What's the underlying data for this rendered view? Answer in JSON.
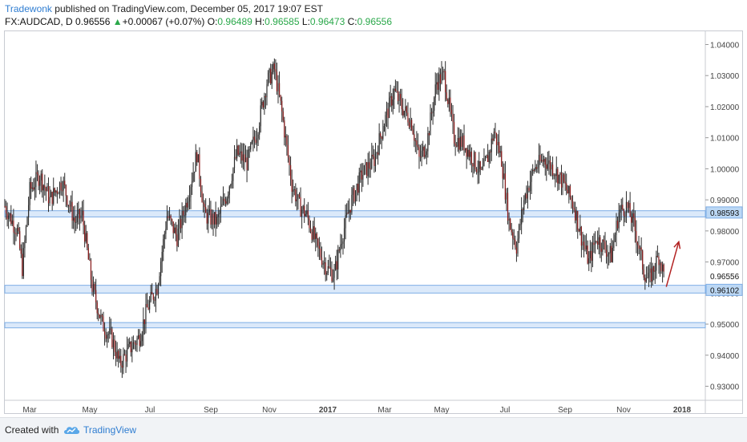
{
  "header": {
    "author": "Tradewonk",
    "published_text": "published on TradingView.com, December 05, 2017 19:07 EST"
  },
  "symbol": {
    "name": "FX:AUDCAD, D",
    "last": "0.96556",
    "change_icon": "triangle-up-icon",
    "change": "+0.00067 (+0.07%)",
    "open_label": "O:",
    "open": "0.96489",
    "high_label": "H:",
    "high": "0.96585",
    "low_label": "L:",
    "low": "0.96473",
    "close_label": "C:",
    "close": "0.96556"
  },
  "footer": {
    "created_with": "Created with",
    "brand": "TradingView",
    "logo_icon": "tradingview-cloud-icon"
  },
  "colors": {
    "bar": "#2b2b2b",
    "bar_accent": "#8b1a1a",
    "zone_fill": "#dbe9fa",
    "zone_line": "#7eaee6",
    "price_tag": "#bcd8f5",
    "arrow": "#b22222",
    "axis_text": "#444444"
  },
  "chart_data": {
    "type": "candlestick",
    "y_axis": {
      "range": [
        0.926,
        1.044
      ],
      "ticks": [
        "0.93000",
        "0.94000",
        "0.95000",
        "0.96000",
        "0.97000",
        "0.98000",
        "0.99000",
        "1.00000",
        "1.01000",
        "1.02000",
        "1.03000",
        "1.04000"
      ],
      "position": "right"
    },
    "x_axis": {
      "labels": [
        {
          "text": "Mar",
          "bold": false
        },
        {
          "text": "May",
          "bold": false
        },
        {
          "text": "Jul",
          "bold": false
        },
        {
          "text": "Sep",
          "bold": false
        },
        {
          "text": "Nov",
          "bold": false
        },
        {
          "text": "2017",
          "bold": true
        },
        {
          "text": "Mar",
          "bold": false
        },
        {
          "text": "May",
          "bold": false
        },
        {
          "text": "Jul",
          "bold": false
        },
        {
          "text": "Sep",
          "bold": false
        },
        {
          "text": "Nov",
          "bold": false
        },
        {
          "text": "2018",
          "bold": true
        }
      ]
    },
    "price_labels": [
      {
        "text": "0.98593",
        "value": 0.98593,
        "highlight": true
      },
      {
        "text": "0.96556",
        "value": 0.96556,
        "highlight": false
      },
      {
        "text": "0.96102",
        "value": 0.96102,
        "highlight": true
      }
    ],
    "zones": [
      {
        "top": 0.9865,
        "bottom": 0.9845
      },
      {
        "top": 0.9625,
        "bottom": 0.96
      },
      {
        "top": 0.9505,
        "bottom": 0.9488
      }
    ],
    "path": [
      {
        "t": 0,
        "v": 0.988
      },
      {
        "t": 6,
        "v": 0.983
      },
      {
        "t": 10,
        "v": 0.98
      },
      {
        "t": 14,
        "v": 0.968
      },
      {
        "t": 20,
        "v": 0.993
      },
      {
        "t": 28,
        "v": 0.998
      },
      {
        "t": 36,
        "v": 0.99
      },
      {
        "t": 46,
        "v": 0.996
      },
      {
        "t": 56,
        "v": 0.983
      },
      {
        "t": 62,
        "v": 0.985
      },
      {
        "t": 70,
        "v": 0.962
      },
      {
        "t": 78,
        "v": 0.95
      },
      {
        "t": 86,
        "v": 0.945
      },
      {
        "t": 92,
        "v": 0.937
      },
      {
        "t": 100,
        "v": 0.942
      },
      {
        "t": 108,
        "v": 0.946
      },
      {
        "t": 114,
        "v": 0.955
      },
      {
        "t": 122,
        "v": 0.962
      },
      {
        "t": 130,
        "v": 0.985
      },
      {
        "t": 138,
        "v": 0.978
      },
      {
        "t": 146,
        "v": 0.99
      },
      {
        "t": 154,
        "v": 1.005
      },
      {
        "t": 160,
        "v": 0.985
      },
      {
        "t": 170,
        "v": 0.983
      },
      {
        "t": 178,
        "v": 0.992
      },
      {
        "t": 186,
        "v": 1.005
      },
      {
        "t": 194,
        "v": 1.002
      },
      {
        "t": 202,
        "v": 1.012
      },
      {
        "t": 210,
        "v": 1.028
      },
      {
        "t": 216,
        "v": 1.032
      },
      {
        "t": 222,
        "v": 1.018
      },
      {
        "t": 230,
        "v": 0.995
      },
      {
        "t": 236,
        "v": 0.988
      },
      {
        "t": 242,
        "v": 0.985
      },
      {
        "t": 250,
        "v": 0.975
      },
      {
        "t": 258,
        "v": 0.968
      },
      {
        "t": 264,
        "v": 0.966
      },
      {
        "t": 270,
        "v": 0.978
      },
      {
        "t": 278,
        "v": 0.99
      },
      {
        "t": 286,
        "v": 0.998
      },
      {
        "t": 296,
        "v": 1.003
      },
      {
        "t": 304,
        "v": 1.015
      },
      {
        "t": 312,
        "v": 1.025
      },
      {
        "t": 318,
        "v": 1.02
      },
      {
        "t": 326,
        "v": 1.015
      },
      {
        "t": 332,
        "v": 1.003
      },
      {
        "t": 338,
        "v": 1.008
      },
      {
        "t": 346,
        "v": 1.028
      },
      {
        "t": 352,
        "v": 1.03
      },
      {
        "t": 360,
        "v": 1.01
      },
      {
        "t": 368,
        "v": 1.008
      },
      {
        "t": 374,
        "v": 1.004
      },
      {
        "t": 382,
        "v": 0.998
      },
      {
        "t": 388,
        "v": 1.005
      },
      {
        "t": 392,
        "v": 1.012
      },
      {
        "t": 398,
        "v": 1.003
      },
      {
        "t": 404,
        "v": 0.983
      },
      {
        "t": 410,
        "v": 0.975
      },
      {
        "t": 416,
        "v": 0.99
      },
      {
        "t": 424,
        "v": 1.0
      },
      {
        "t": 432,
        "v": 1.003
      },
      {
        "t": 440,
        "v": 1.0
      },
      {
        "t": 448,
        "v": 0.995
      },
      {
        "t": 456,
        "v": 0.988
      },
      {
        "t": 462,
        "v": 0.978
      },
      {
        "t": 468,
        "v": 0.97
      },
      {
        "t": 474,
        "v": 0.978
      },
      {
        "t": 480,
        "v": 0.975
      },
      {
        "t": 486,
        "v": 0.972
      },
      {
        "t": 492,
        "v": 0.986
      },
      {
        "t": 498,
        "v": 0.988
      },
      {
        "t": 504,
        "v": 0.982
      },
      {
        "t": 508,
        "v": 0.975
      },
      {
        "t": 512,
        "v": 0.967
      },
      {
        "t": 516,
        "v": 0.964
      },
      {
        "t": 520,
        "v": 0.968
      },
      {
        "t": 524,
        "v": 0.972
      },
      {
        "t": 528,
        "v": 0.966
      }
    ],
    "projection_arrow": {
      "from": {
        "t": 530,
        "v": 0.962
      },
      "to": {
        "t": 540,
        "v": 0.9765
      }
    }
  }
}
